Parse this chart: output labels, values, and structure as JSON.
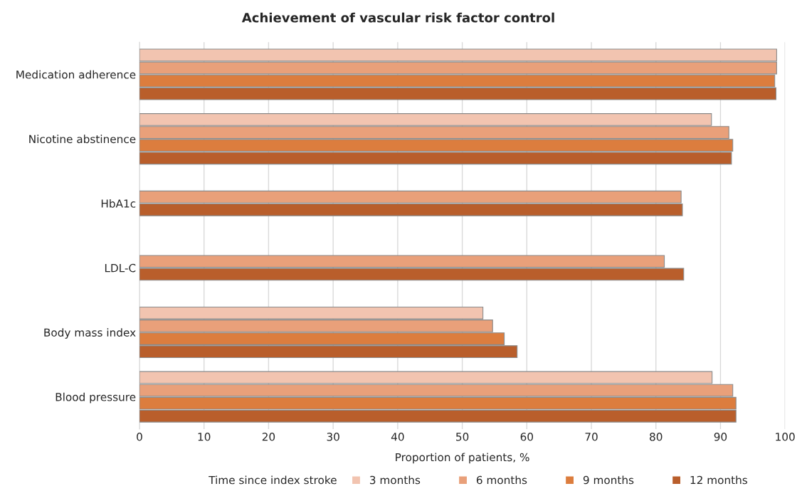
{
  "chart_data": {
    "type": "bar",
    "orientation": "horizontal",
    "title": "Achievement of vascular risk factor control",
    "xlabel": "Proportion of patients, %",
    "legend_title": "Time since index stroke",
    "categories": [
      "Medication adherence",
      "Nicotine abstinence",
      "HbA1c",
      "LDL-C",
      "Body mass index",
      "Blood pressure"
    ],
    "series": [
      {
        "name": "3 months",
        "color": "#f2c4b0",
        "values": [
          98.7,
          88.6,
          null,
          null,
          53.2,
          88.7
        ]
      },
      {
        "name": "6 months",
        "color": "#e9a07a",
        "values": [
          98.7,
          91.3,
          83.9,
          81.3,
          54.7,
          91.9
        ]
      },
      {
        "name": "9 months",
        "color": "#dc7d3e",
        "values": [
          98.4,
          91.9,
          null,
          null,
          56.5,
          92.4
        ]
      },
      {
        "name": "12 months",
        "color": "#b95e2b",
        "values": [
          98.6,
          91.7,
          84.1,
          84.3,
          58.5,
          92.4
        ]
      }
    ],
    "xlim": [
      0,
      100
    ],
    "xticks": [
      0,
      10,
      20,
      30,
      40,
      50,
      60,
      70,
      80,
      90,
      100
    ],
    "grid": "x",
    "legend": "bottom"
  }
}
